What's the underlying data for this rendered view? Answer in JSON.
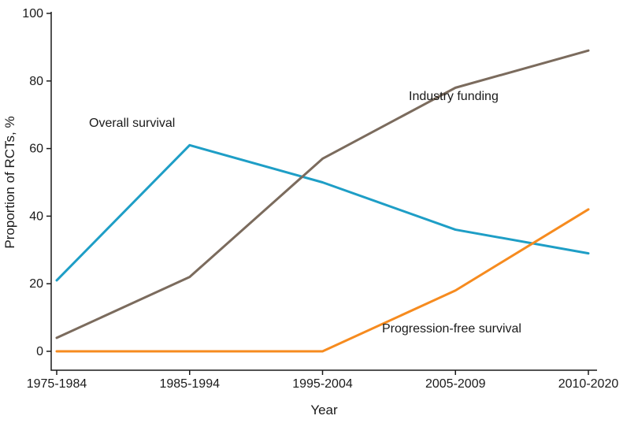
{
  "chart_data": {
    "type": "line",
    "title": "",
    "xlabel": "Year",
    "ylabel": "Proportion of RCTs, %",
    "categories": [
      "1975-1984",
      "1985-1994",
      "1995-2004",
      "2005-2009",
      "2010-2020"
    ],
    "y_ticks": [
      0,
      20,
      40,
      60,
      80,
      100
    ],
    "ylim": [
      0,
      100
    ],
    "grid": false,
    "legend": "inline-annotations",
    "series": [
      {
        "name": "Overall survival",
        "color": "#1e9ec6",
        "values": [
          21,
          61,
          50,
          36,
          29
        ]
      },
      {
        "name": "Industry funding",
        "color": "#7b6b5d",
        "values": [
          4,
          22,
          57,
          78,
          89
        ]
      },
      {
        "name": "Progression-free survival",
        "color": "#f68b1f",
        "values": [
          0,
          0,
          0,
          18,
          42
        ]
      }
    ],
    "annotations": [
      {
        "text": "Overall survival",
        "xi": 0.25,
        "value": 66.5,
        "anchor": "start"
      },
      {
        "text": "Industry funding",
        "xi": 2.65,
        "value": 74,
        "anchor": "start"
      },
      {
        "text": "Progression-free survival",
        "xi": 2.45,
        "value": 5.5,
        "anchor": "start"
      }
    ]
  },
  "colors": {
    "axis": "#1a1a1a",
    "text": "#1a1a1a",
    "background": "#ffffff"
  }
}
